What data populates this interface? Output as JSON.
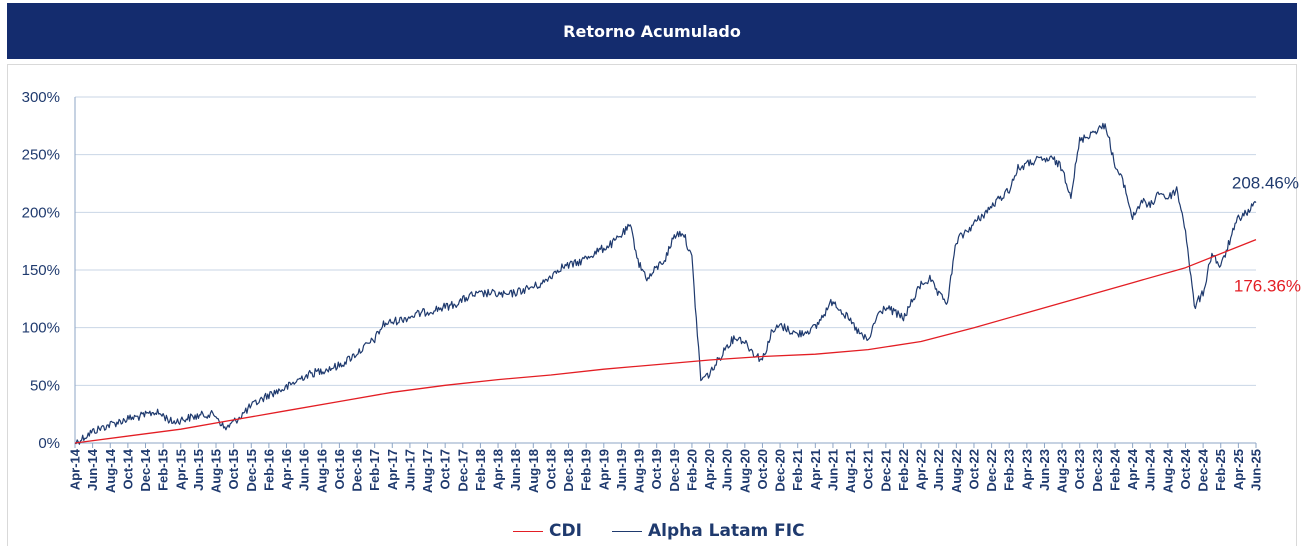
{
  "header": {
    "title": "Retorno Acumulado"
  },
  "chart_data": {
    "type": "line",
    "title": "Retorno Acumulado",
    "xlabel": "",
    "ylabel": "",
    "ylim": [
      0,
      300
    ],
    "y_ticks": [
      "0%",
      "50%",
      "100%",
      "150%",
      "200%",
      "250%",
      "300%"
    ],
    "x_ticks": [
      "Apr-14",
      "Jun-14",
      "Aug-14",
      "Oct-14",
      "Dec-14",
      "Feb-15",
      "Apr-15",
      "Jun-15",
      "Aug-15",
      "Oct-15",
      "Dec-15",
      "Feb-16",
      "Apr-16",
      "Jun-16",
      "Aug-16",
      "Oct-16",
      "Dec-16",
      "Feb-17",
      "Apr-17",
      "Jun-17",
      "Aug-17",
      "Oct-17",
      "Dec-17",
      "Feb-18",
      "Apr-18",
      "Jun-18",
      "Aug-18",
      "Oct-18",
      "Dec-18",
      "Feb-19",
      "Apr-19",
      "Jun-19",
      "Aug-19",
      "Oct-19",
      "Dec-19",
      "Feb-20",
      "Apr-20",
      "Jun-20",
      "Aug-20",
      "Oct-20",
      "Dec-20",
      "Feb-21",
      "Apr-21",
      "Jun-21",
      "Aug-21",
      "Oct-21",
      "Dec-21",
      "Feb-22",
      "Apr-22",
      "Jun-22",
      "Aug-22",
      "Oct-22",
      "Dec-22",
      "Feb-23",
      "Apr-23",
      "Jun-23",
      "Aug-23",
      "Oct-23",
      "Dec-23",
      "Feb-24",
      "Apr-24",
      "Jun-24",
      "Aug-24",
      "Oct-24",
      "Dec-24",
      "Feb-25",
      "Apr-25",
      "Jun-25"
    ],
    "grid": true,
    "legend_position": "bottom",
    "series": [
      {
        "name": "CDI",
        "color": "#e31e24",
        "end_label": "176.36%",
        "points": [
          [
            "Apr-14",
            0
          ],
          [
            "Apr-15",
            12
          ],
          [
            "Oct-15",
            20
          ],
          [
            "Apr-16",
            28
          ],
          [
            "Oct-16",
            36
          ],
          [
            "Apr-17",
            44
          ],
          [
            "Oct-17",
            50
          ],
          [
            "Apr-18",
            55
          ],
          [
            "Oct-18",
            59
          ],
          [
            "Apr-19",
            64
          ],
          [
            "Oct-19",
            68
          ],
          [
            "Apr-20",
            72
          ],
          [
            "Oct-20",
            75
          ],
          [
            "Apr-21",
            77
          ],
          [
            "Oct-21",
            81
          ],
          [
            "Apr-22",
            88
          ],
          [
            "Oct-22",
            100
          ],
          [
            "Apr-23",
            113
          ],
          [
            "Oct-23",
            126
          ],
          [
            "Apr-24",
            139
          ],
          [
            "Oct-24",
            152
          ],
          [
            "Jun-25",
            176.36
          ]
        ]
      },
      {
        "name": "Alpha Latam FIC",
        "color": "#1f3a6e",
        "end_label": "208.46%",
        "points": [
          [
            "Apr-14",
            0
          ],
          [
            "Jun-14",
            10
          ],
          [
            "Aug-14",
            16
          ],
          [
            "Oct-14",
            21
          ],
          [
            "Dec-14",
            24
          ],
          [
            "Jan-15",
            27
          ],
          [
            "Feb-15",
            24
          ],
          [
            "Mar-15",
            18
          ],
          [
            "May-15",
            22
          ],
          [
            "Jul-15",
            25
          ],
          [
            "Aug-15",
            24
          ],
          [
            "Sep-15",
            12
          ],
          [
            "Oct-15",
            18
          ],
          [
            "Dec-15",
            32
          ],
          [
            "Feb-16",
            42
          ],
          [
            "Apr-16",
            48
          ],
          [
            "Jun-16",
            58
          ],
          [
            "Aug-16",
            63
          ],
          [
            "Oct-16",
            67
          ],
          [
            "Dec-16",
            78
          ],
          [
            "Feb-17",
            90
          ],
          [
            "Mar-17",
            103
          ],
          [
            "May-17",
            107
          ],
          [
            "Jul-17",
            112
          ],
          [
            "Sep-17",
            116
          ],
          [
            "Nov-17",
            120
          ],
          [
            "Jan-18",
            128
          ],
          [
            "Mar-18",
            130
          ],
          [
            "May-18",
            128
          ],
          [
            "Jul-18",
            133
          ],
          [
            "Sep-18",
            138
          ],
          [
            "Nov-18",
            152
          ],
          [
            "Jan-19",
            156
          ],
          [
            "Mar-19",
            165
          ],
          [
            "May-19",
            173
          ],
          [
            "Jul-19",
            188
          ],
          [
            "Aug-19",
            155
          ],
          [
            "Sep-19",
            142
          ],
          [
            "Oct-19",
            152
          ],
          [
            "Nov-19",
            160
          ],
          [
            "Dec-19",
            180
          ],
          [
            "Jan-20",
            183
          ],
          [
            "Feb-20",
            160
          ],
          [
            "Mar-20",
            55
          ],
          [
            "Apr-20",
            60
          ],
          [
            "May-20",
            72
          ],
          [
            "Jun-20",
            85
          ],
          [
            "Jul-20",
            92
          ],
          [
            "Aug-20",
            88
          ],
          [
            "Sep-20",
            78
          ],
          [
            "Oct-20",
            72
          ],
          [
            "Nov-20",
            95
          ],
          [
            "Dec-20",
            102
          ],
          [
            "Feb-21",
            94
          ],
          [
            "Apr-21",
            100
          ],
          [
            "Jun-21",
            124
          ],
          [
            "Aug-21",
            105
          ],
          [
            "Sep-21",
            95
          ],
          [
            "Oct-21",
            88
          ],
          [
            "Nov-21",
            110
          ],
          [
            "Dec-21",
            118
          ],
          [
            "Feb-22",
            108
          ],
          [
            "Apr-22",
            138
          ],
          [
            "May-22",
            142
          ],
          [
            "Jun-22",
            128
          ],
          [
            "Jul-22",
            122
          ],
          [
            "Aug-22",
            175
          ],
          [
            "Oct-22",
            190
          ],
          [
            "Dec-22",
            205
          ],
          [
            "Feb-23",
            220
          ],
          [
            "Mar-23",
            238
          ],
          [
            "May-23",
            245
          ],
          [
            "Jul-23",
            246
          ],
          [
            "Aug-23",
            238
          ],
          [
            "Sep-23",
            215
          ],
          [
            "Oct-23",
            262
          ],
          [
            "Dec-23",
            272
          ],
          [
            "Jan-24",
            275
          ],
          [
            "Feb-24",
            240
          ],
          [
            "Mar-24",
            225
          ],
          [
            "Apr-24",
            195
          ],
          [
            "May-24",
            210
          ],
          [
            "Jun-24",
            205
          ],
          [
            "Jul-24",
            218
          ],
          [
            "Aug-24",
            212
          ],
          [
            "Sep-24",
            220
          ],
          [
            "Oct-24",
            185
          ],
          [
            "Nov-24",
            118
          ],
          [
            "Dec-24",
            130
          ],
          [
            "Jan-25",
            165
          ],
          [
            "Feb-25",
            152
          ],
          [
            "Mar-25",
            175
          ],
          [
            "Apr-25",
            195
          ],
          [
            "May-25",
            200
          ],
          [
            "Jun-25",
            208.46
          ]
        ]
      }
    ]
  }
}
